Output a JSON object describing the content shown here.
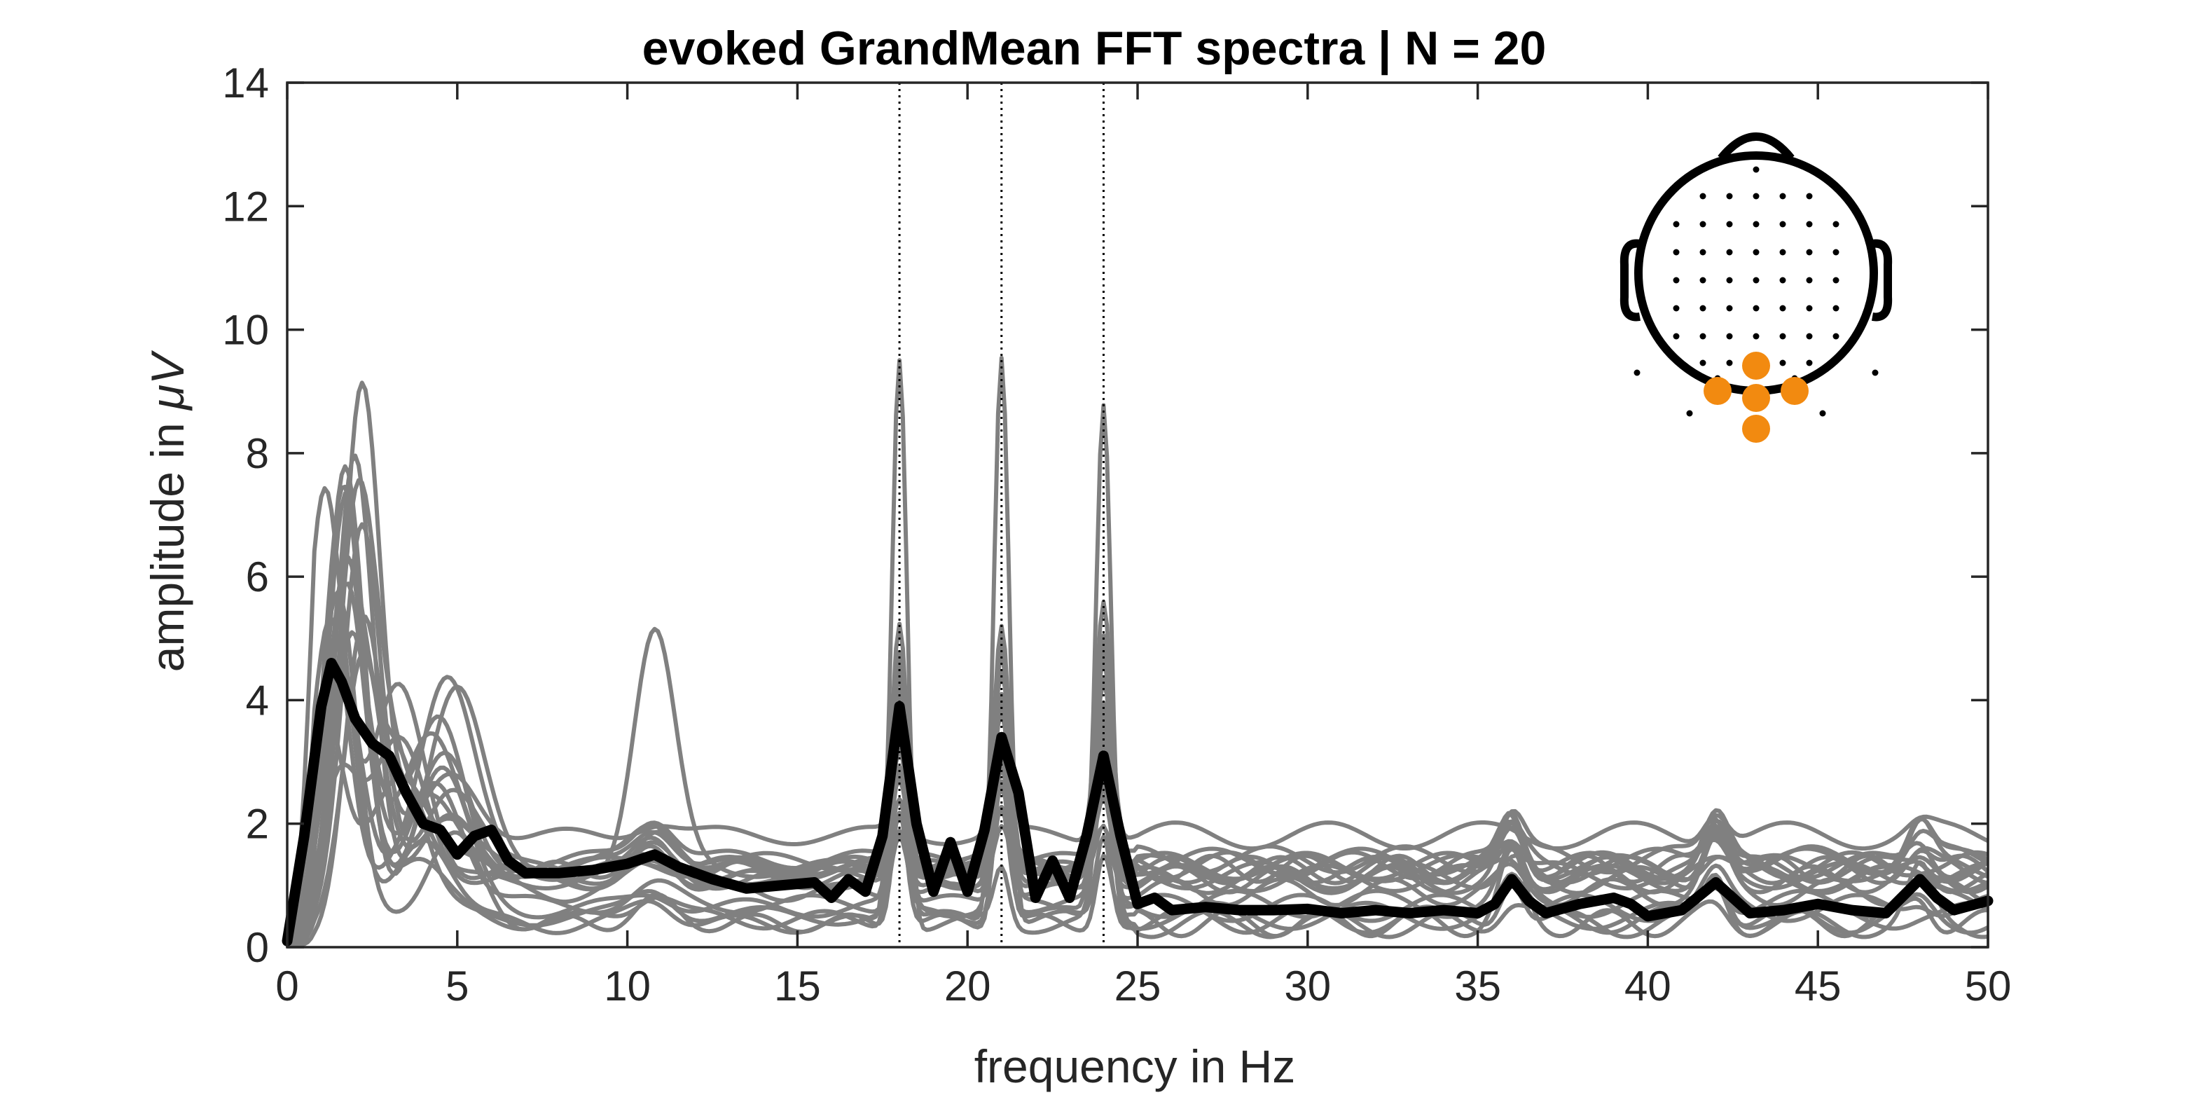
{
  "chart_data": {
    "type": "line",
    "title": "evoked GrandMean FFT spectra | N = 20",
    "xlabel": "frequency in Hz",
    "ylabel_prefix": "amplitude in ",
    "ylabel_unit": "μV",
    "xlim": [
      0,
      50
    ],
    "ylim": [
      0,
      14
    ],
    "xticks": [
      "0",
      "5",
      "10",
      "15",
      "20",
      "25",
      "30",
      "35",
      "40",
      "45",
      "50"
    ],
    "yticks": [
      "0",
      "2",
      "4",
      "6",
      "8",
      "10",
      "12",
      "14"
    ],
    "grid": false,
    "box": true,
    "vertical_lines": [
      18,
      21,
      24
    ],
    "colors": {
      "subject_line": "#808080",
      "grand_mean_line": "#000000",
      "highlight_electrode": "#f28a10",
      "axis": "#262626"
    },
    "series": [
      {
        "role": "grand-mean",
        "x": [
          0,
          0.5,
          1,
          1.3,
          1.6,
          2,
          2.5,
          3,
          3.5,
          4,
          4.5,
          5,
          5.5,
          6,
          6.5,
          7,
          8,
          9,
          10,
          10.8,
          11.5,
          12.5,
          13.5,
          14.5,
          15.5,
          16,
          16.5,
          17,
          17.5,
          18,
          18.5,
          19,
          19.5,
          20,
          20.5,
          21,
          21.5,
          22,
          22.5,
          23,
          23.5,
          24,
          24.5,
          25,
          25.5,
          26,
          27,
          28,
          29,
          30,
          31,
          32,
          33,
          34,
          35,
          35.5,
          36,
          36.5,
          37,
          38,
          39,
          39.5,
          40,
          41,
          42,
          43,
          44,
          45,
          46,
          47,
          48,
          48.5,
          49,
          50
        ],
        "y": [
          0.1,
          1.8,
          3.9,
          4.6,
          4.3,
          3.7,
          3.3,
          3.1,
          2.5,
          2.0,
          1.9,
          1.5,
          1.8,
          1.9,
          1.4,
          1.2,
          1.2,
          1.25,
          1.35,
          1.5,
          1.3,
          1.1,
          0.95,
          1.0,
          1.05,
          0.8,
          1.1,
          0.9,
          1.8,
          3.9,
          2.0,
          0.9,
          1.7,
          0.9,
          1.9,
          3.4,
          2.5,
          0.8,
          1.4,
          0.8,
          1.8,
          3.1,
          1.8,
          0.7,
          0.8,
          0.6,
          0.65,
          0.6,
          0.6,
          0.62,
          0.55,
          0.6,
          0.55,
          0.6,
          0.55,
          0.7,
          1.1,
          0.75,
          0.55,
          0.7,
          0.8,
          0.7,
          0.5,
          0.6,
          1.05,
          0.55,
          0.6,
          0.7,
          0.6,
          0.55,
          1.1,
          0.8,
          0.6,
          0.75
        ]
      }
    ]
  },
  "head_inset": {
    "highlighted_electrodes": 5,
    "electrode_grid_rows": 8
  }
}
